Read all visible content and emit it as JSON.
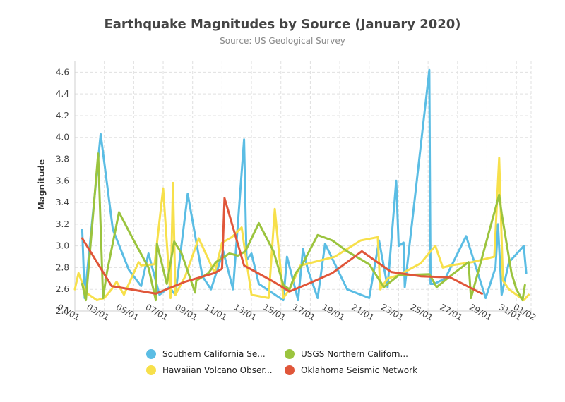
{
  "chart_data": {
    "type": "line",
    "title": "Earthquake Magnitudes by Source (January 2020)",
    "subtitle": "Source: US Geological Survey",
    "ylabel": "Magnitude",
    "xlabel": "",
    "xlim": [
      "2020-01-01",
      "2020-02-01"
    ],
    "ylim": [
      2.4,
      4.7
    ],
    "yticks": [
      2.4,
      2.6,
      2.8,
      3.0,
      3.2,
      3.4,
      3.6,
      3.8,
      4.0,
      4.2,
      4.4,
      4.6
    ],
    "yticklabels": [
      "2.4",
      "2.6",
      "2.8",
      "3.0",
      "3.2",
      "3.4",
      "3.6",
      "3.8",
      "4.0",
      "4.2",
      "4.4",
      "4.6"
    ],
    "xticks": [
      "2020-01-01",
      "2020-01-03",
      "2020-01-05",
      "2020-01-07",
      "2020-01-09",
      "2020-01-11",
      "2020-01-13",
      "2020-01-15",
      "2020-01-17",
      "2020-01-19",
      "2020-01-21",
      "2020-01-23",
      "2020-01-25",
      "2020-01-27",
      "2020-01-29",
      "2020-01-31",
      "2020-02-01"
    ],
    "xticklabels": [
      "01/01",
      "03/01",
      "05/01",
      "07/01",
      "09/01",
      "11/01",
      "13/01",
      "15/01",
      "17/01",
      "19/01",
      "21/01",
      "23/01",
      "25/01",
      "27/01",
      "29/01",
      "31/01",
      "01/02"
    ],
    "grid": true,
    "legend_position": "bottom",
    "series": [
      {
        "name": "Southern California Se...",
        "color": "#5bbde4",
        "x": [
          "2020-01-01T12:00",
          "2020-01-01T16:00",
          "2020-01-02T18:00",
          "2020-01-03T14:00",
          "2020-01-04T16:00",
          "2020-01-05T12:00",
          "2020-01-06T00:00",
          "2020-01-06T18:00",
          "2020-01-07T10:00",
          "2020-01-07T20:00",
          "2020-01-08T16:00",
          "2020-01-09T16:00",
          "2020-01-10T06:00",
          "2020-01-11T02:00",
          "2020-01-11T18:00",
          "2020-01-12T12:00",
          "2020-01-12T16:00",
          "2020-01-13T00:00",
          "2020-01-13T12:00",
          "2020-01-15T04:00",
          "2020-01-15T10:00",
          "2020-01-16T04:00",
          "2020-01-16T12:00",
          "2020-01-16T20:00",
          "2020-01-17T12:00",
          "2020-01-18T00:00",
          "2020-01-19T12:00",
          "2020-01-21T00:00",
          "2020-01-21T16:00",
          "2020-01-22T06:00",
          "2020-01-22T20:00",
          "2020-01-23T00:00",
          "2020-01-23T08:00",
          "2020-01-23T10:00",
          "2020-01-25T02:00",
          "2020-01-25T04:00",
          "2020-01-25T10:00",
          "2020-01-26T04:00",
          "2020-01-27T14:00",
          "2020-01-28T22:00",
          "2020-01-29T14:00",
          "2020-01-29T18:00",
          "2020-01-30T00:00",
          "2020-01-30T12:00",
          "2020-01-31T12:00",
          "2020-01-31T16:00"
        ],
        "y": [
          3.15,
          2.52,
          4.03,
          3.15,
          2.78,
          2.63,
          2.93,
          2.55,
          2.62,
          2.55,
          3.48,
          2.72,
          2.6,
          2.95,
          2.6,
          3.98,
          2.87,
          2.93,
          2.65,
          2.5,
          2.9,
          2.5,
          2.97,
          2.78,
          2.52,
          3.02,
          2.6,
          2.52,
          3.05,
          2.62,
          3.6,
          3.0,
          3.03,
          2.62,
          4.62,
          2.65,
          2.65,
          2.7,
          3.09,
          2.52,
          2.8,
          3.2,
          2.55,
          2.85,
          3.0,
          2.75
        ]
      },
      {
        "name": "Hawaiian Volcano Obser...",
        "color": "#f7e04b",
        "x": [
          "2020-01-01T00:00",
          "2020-01-01T06:00",
          "2020-01-01T18:00",
          "2020-01-02T12:00",
          "2020-01-03T00:00",
          "2020-01-03T12:00",
          "2020-01-03T20:00",
          "2020-01-04T08:00",
          "2020-01-04T20:00",
          "2020-01-05T08:00",
          "2020-01-05T12:00",
          "2020-01-06T10:00",
          "2020-01-07T00:00",
          "2020-01-07T12:00",
          "2020-01-07T16:00",
          "2020-01-07T20:00",
          "2020-01-08T12:00",
          "2020-01-09T10:00",
          "2020-01-10T12:00",
          "2020-01-11T00:00",
          "2020-01-11T16:00",
          "2020-01-12T08:00",
          "2020-01-12T14:00",
          "2020-01-13T00:00",
          "2020-01-14T04:00",
          "2020-01-14T14:00",
          "2020-01-15T04:00",
          "2020-01-15T14:00",
          "2020-01-16T08:00",
          "2020-01-18T16:00",
          "2020-01-20T10:00",
          "2020-01-21T14:00",
          "2020-01-21T18:00",
          "2020-01-22T06:00",
          "2020-01-23T00:00",
          "2020-01-24T12:00",
          "2020-01-25T04:00",
          "2020-01-25T12:00",
          "2020-01-26T00:00",
          "2020-01-26T12:00",
          "2020-01-28T00:00",
          "2020-01-29T12:00",
          "2020-01-29T20:00",
          "2020-01-30T02:00",
          "2020-01-30T12:00",
          "2020-01-31T12:00",
          "2020-01-31T20:00"
        ],
        "y": [
          2.6,
          2.75,
          2.57,
          2.5,
          2.52,
          2.6,
          2.67,
          2.55,
          2.7,
          2.85,
          2.82,
          2.83,
          3.53,
          2.52,
          3.58,
          2.55,
          2.72,
          3.07,
          2.75,
          3.03,
          3.08,
          3.17,
          2.93,
          2.55,
          2.52,
          3.34,
          2.52,
          2.6,
          2.82,
          2.9,
          3.05,
          3.08,
          2.6,
          2.7,
          2.73,
          2.84,
          2.95,
          3.0,
          2.8,
          2.82,
          2.85,
          2.9,
          3.81,
          2.68,
          2.6,
          2.5,
          2.55
        ]
      },
      {
        "name": "USGS Northern Californ...",
        "color": "#9bc43e",
        "x": [
          "2020-01-01T12:00",
          "2020-01-01T18:00",
          "2020-01-02T14:00",
          "2020-01-02T22:00",
          "2020-01-03T04:00",
          "2020-01-04T00:00",
          "2020-01-05T00:00",
          "2020-01-06T00:00",
          "2020-01-06T12:00",
          "2020-01-06T14:00",
          "2020-01-07T06:00",
          "2020-01-07T18:00",
          "2020-01-08T06:00",
          "2020-01-09T04:00",
          "2020-01-09T06:00",
          "2020-01-10T02:00",
          "2020-01-10T14:00",
          "2020-01-11T12:00",
          "2020-01-12T02:00",
          "2020-01-12T14:00",
          "2020-01-13T12:00",
          "2020-01-14T12:00",
          "2020-01-15T04:00",
          "2020-01-15T14:00",
          "2020-01-16T00:00",
          "2020-01-16T10:00",
          "2020-01-17T12:00",
          "2020-01-18T12:00",
          "2020-01-19T12:00",
          "2020-01-21T00:00",
          "2020-01-22T00:00",
          "2020-01-23T00:00",
          "2020-01-25T02:00",
          "2020-01-25T14:00",
          "2020-01-26T14:00",
          "2020-01-27T18:00",
          "2020-01-27T22:00",
          "2020-01-29T20:00",
          "2020-01-30T00:00",
          "2020-01-30T16:00",
          "2020-01-31T00:00",
          "2020-01-31T10:00",
          "2020-01-31T14:00"
        ],
        "y": [
          2.65,
          2.5,
          3.85,
          2.52,
          2.75,
          3.31,
          3.05,
          2.8,
          2.5,
          3.02,
          2.65,
          3.04,
          2.93,
          2.57,
          2.68,
          2.75,
          2.85,
          2.93,
          2.91,
          2.95,
          3.21,
          2.95,
          2.64,
          2.6,
          2.75,
          2.82,
          3.1,
          3.05,
          2.95,
          2.83,
          2.62,
          2.73,
          2.74,
          2.62,
          2.73,
          2.85,
          2.52,
          3.47,
          3.3,
          2.75,
          2.6,
          2.5,
          2.64
        ]
      },
      {
        "name": "Oklahoma Seismic Network",
        "color": "#e0563a",
        "x": [
          "2020-01-01T12:00",
          "2020-01-03T12:00",
          "2020-01-06T12:00",
          "2020-01-08T12:00",
          "2020-01-10T12:00",
          "2020-01-11T00:00",
          "2020-01-11T04:00",
          "2020-01-12T12:00",
          "2020-01-14T12:00",
          "2020-01-15T14:00",
          "2020-01-17T00:00",
          "2020-01-18T12:00",
          "2020-01-20T12:00",
          "2020-01-22T12:00",
          "2020-01-24T12:00",
          "2020-01-26T12:00",
          "2020-01-28T16:00"
        ],
        "y": [
          3.07,
          2.63,
          2.56,
          2.67,
          2.75,
          2.79,
          3.44,
          2.82,
          2.67,
          2.58,
          2.66,
          2.75,
          2.95,
          2.76,
          2.72,
          2.71,
          2.56
        ]
      }
    ]
  }
}
